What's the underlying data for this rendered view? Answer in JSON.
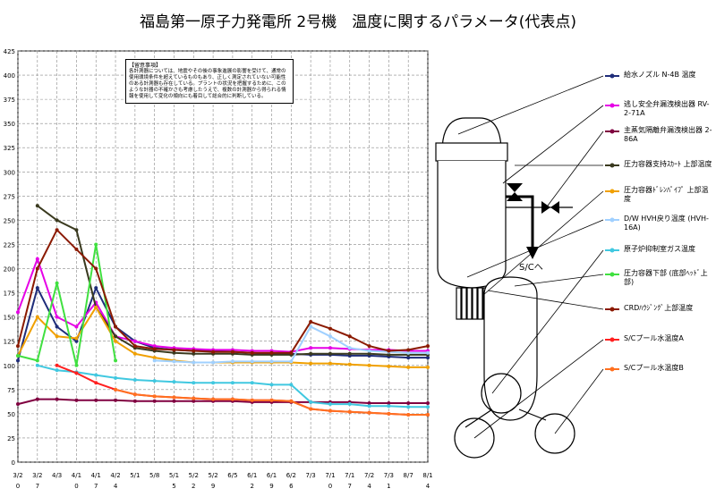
{
  "chart_data": {
    "type": "line",
    "title": "福島第一原子力発電所 2号機　温度に関するパラメータ(代表点)",
    "ylim": [
      0,
      425
    ],
    "y_ticks": [
      0,
      25,
      50,
      75,
      100,
      125,
      150,
      175,
      200,
      225,
      250,
      275,
      300,
      325,
      350,
      375,
      400,
      425
    ],
    "x_ticks": [
      {
        "top": "3/2",
        "bottom": "0"
      },
      {
        "top": "3/2",
        "bottom": "7"
      },
      {
        "top": "4/3",
        "bottom": ""
      },
      {
        "top": "4/1",
        "bottom": "0"
      },
      {
        "top": "4/1",
        "bottom": "7"
      },
      {
        "top": "4/2",
        "bottom": "4"
      },
      {
        "top": "5/1",
        "bottom": ""
      },
      {
        "top": "5/8",
        "bottom": ""
      },
      {
        "top": "5/1",
        "bottom": "5"
      },
      {
        "top": "5/2",
        "bottom": "2"
      },
      {
        "top": "5/2",
        "bottom": "9"
      },
      {
        "top": "6/5",
        "bottom": ""
      },
      {
        "top": "6/1",
        "bottom": "2"
      },
      {
        "top": "6/1",
        "bottom": "9"
      },
      {
        "top": "6/2",
        "bottom": "6"
      },
      {
        "top": "7/3",
        "bottom": ""
      },
      {
        "top": "7/1",
        "bottom": "0"
      },
      {
        "top": "7/1",
        "bottom": "7"
      },
      {
        "top": "7/2",
        "bottom": "4"
      },
      {
        "top": "7/3",
        "bottom": "1"
      },
      {
        "top": "8/7",
        "bottom": ""
      },
      {
        "top": "8/1",
        "bottom": "4"
      }
    ],
    "series": [
      {
        "name": "給水ノズル N-4B 温度",
        "color": "#1f2d7a",
        "values": [
          105,
          180,
          140,
          125,
          180,
          140,
          125,
          118,
          116,
          115,
          115,
          114,
          113,
          112,
          112,
          111,
          111,
          110,
          110,
          109,
          108,
          108
        ]
      },
      {
        "name": "逃し安全弁漏洩検出器 RV-2-71A",
        "color": "#e600e6",
        "values": [
          155,
          210,
          150,
          140,
          165,
          130,
          125,
          120,
          118,
          117,
          116,
          116,
          115,
          115,
          114,
          118,
          118,
          117,
          116,
          116,
          115,
          115
        ]
      },
      {
        "name": "主蒸気隔離弁漏洩検出器 2-86A",
        "color": "#800040",
        "values": [
          60,
          65,
          65,
          64,
          64,
          64,
          63,
          63,
          63,
          63,
          63,
          63,
          62,
          62,
          62,
          62,
          62,
          62,
          61,
          61,
          61,
          61
        ]
      },
      {
        "name": "圧力容器支持ｽｶｰﾄ 上部温度",
        "color": "#3a3a1f",
        "values": [
          null,
          265,
          250,
          240,
          160,
          130,
          118,
          115,
          113,
          112,
          112,
          112,
          111,
          111,
          111,
          112,
          112,
          112,
          112,
          111,
          111,
          111
        ]
      },
      {
        "name": "圧力容器ﾄﾞﾚﾝﾊﾟｲﾌﾟ 上部温度",
        "color": "#f0a000",
        "values": [
          110,
          150,
          130,
          128,
          160,
          125,
          112,
          108,
          105,
          103,
          103,
          103,
          103,
          103,
          103,
          102,
          102,
          101,
          100,
          99,
          98,
          98
        ]
      },
      {
        "name": "D/W HVH戻り温度 (HVH-16A)",
        "color": "#a0d0ff",
        "values": [
          null,
          null,
          null,
          null,
          null,
          null,
          null,
          105,
          104,
          103,
          103,
          104,
          104,
          104,
          104,
          140,
          130,
          118,
          115,
          114,
          113,
          113
        ]
      },
      {
        "name": "原子炉抑制室ガス温度",
        "color": "#40c8e0",
        "values": [
          null,
          100,
          95,
          93,
          90,
          87,
          85,
          84,
          83,
          82,
          82,
          82,
          82,
          80,
          80,
          62,
          60,
          60,
          58,
          58,
          57,
          57
        ]
      },
      {
        "name": "圧力容器下部 (底部ﾍｯﾄﾞ上部)",
        "color": "#40e040",
        "values": [
          110,
          105,
          185,
          100,
          225,
          105,
          null,
          null,
          null,
          null,
          null,
          null,
          null,
          null,
          null,
          null,
          null,
          null,
          null,
          null,
          null,
          null
        ]
      },
      {
        "name": "CRDﾊｳｼﾞﾝｸﾞ上部温度",
        "color": "#8b1a00",
        "values": [
          120,
          200,
          240,
          220,
          200,
          140,
          120,
          117,
          116,
          115,
          114,
          114,
          113,
          113,
          113,
          145,
          138,
          130,
          120,
          115,
          116,
          120
        ]
      },
      {
        "name": "S/Cプール水温度A",
        "color": "#ff2020",
        "values": [
          null,
          null,
          100,
          92,
          82,
          75,
          70,
          68,
          67,
          66,
          65,
          65,
          64,
          64,
          63,
          55,
          53,
          52,
          51,
          50,
          49,
          49
        ]
      },
      {
        "name": "S/Cプール水温度B",
        "color": "#ff7020",
        "values": [
          null,
          null,
          null,
          null,
          null,
          75,
          70,
          68,
          67,
          66,
          65,
          65,
          64,
          64,
          63,
          55,
          53,
          52,
          51,
          50,
          49,
          49
        ]
      }
    ]
  },
  "note": {
    "heading": "【留意事項】",
    "body": "各計測器については、地震やその後の事象進展の影響を受けて、通常の使用環境条件を超えているものもあり、正しく測定されていない可能性のある計測器も存在している。プラントの状況を把握するために、このような計器の不確かさも考慮したうえで、複数の計測器から得られる情報を使用して変化の傾向にも着目して総合的に判断している。"
  },
  "diagram": {
    "sc_label": "S/Cへ"
  }
}
